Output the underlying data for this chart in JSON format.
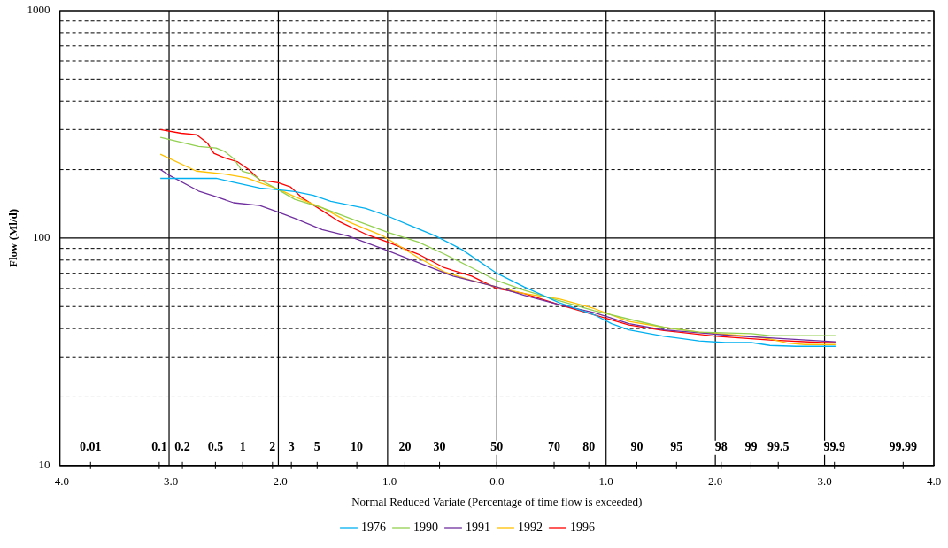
{
  "chart_data": {
    "type": "line",
    "xlabel": "Normal Reduced Variate (Percentage of time flow is exceeded)",
    "ylabel": "Flow (Ml/d)",
    "xlim": [
      -4,
      4
    ],
    "xticks": [
      {
        "value": -4,
        "label": "-4.0"
      },
      {
        "value": -3,
        "label": "-3.0"
      },
      {
        "value": -2,
        "label": "-2.0"
      },
      {
        "value": -1,
        "label": "-1.0"
      },
      {
        "value": 0,
        "label": "0.0"
      },
      {
        "value": 1,
        "label": "1.0"
      },
      {
        "value": 2,
        "label": "2.0"
      },
      {
        "value": 3,
        "label": "3.0"
      },
      {
        "value": 4,
        "label": "4.0"
      }
    ],
    "ylim": [
      10,
      1000
    ],
    "yticks": [
      10,
      {
        "value": 20,
        "label": null
      },
      {
        "value": 30,
        "label": null
      },
      {
        "value": 40,
        "label": null
      },
      {
        "value": 50,
        "label": null
      },
      {
        "value": 60,
        "label": null
      },
      {
        "value": 70,
        "label": null
      },
      {
        "value": 80,
        "label": null
      },
      {
        "value": 90,
        "label": null
      },
      100,
      {
        "value": 200,
        "label": null
      },
      {
        "value": 300,
        "label": null
      },
      {
        "value": 400,
        "label": null
      },
      {
        "value": 500,
        "label": null
      },
      {
        "value": 600,
        "label": null
      },
      {
        "value": 700,
        "label": null
      },
      {
        "value": 800,
        "label": null
      },
      {
        "value": 900,
        "label": null
      },
      1000
    ],
    "log": "y",
    "grid": true,
    "legend": "bottom",
    "marker": "none",
    "line_style": "solid",
    "series": [
      {
        "name": "1976",
        "color": "#00b0f0",
        "x": [
          -3.08,
          -2.57,
          -2.41,
          -2.17,
          -2.0,
          -1.85,
          -1.68,
          -1.52,
          -1.2,
          -1.0,
          -0.8,
          -0.56,
          -0.32,
          0,
          0.25,
          0.57,
          0.89,
          1.05,
          1.21,
          1.53,
          1.85,
          2.09,
          2.33,
          2.5,
          2.74,
          3.1
        ],
        "values": [
          183,
          183,
          176,
          166,
          163,
          160,
          154,
          145,
          135,
          125,
          114,
          102,
          89,
          70,
          61,
          52,
          46,
          42,
          39.5,
          37,
          35.3,
          34.7,
          34.7,
          33.7,
          33.4,
          33.4
        ]
      },
      {
        "name": "1990",
        "color": "#92d050",
        "x": [
          -3.08,
          -2.73,
          -2.57,
          -2.49,
          -2.41,
          -2.33,
          -2.25,
          -2.17,
          -2.0,
          -1.85,
          -1.6,
          -1.36,
          -1.0,
          -0.72,
          -0.48,
          -0.23,
          0,
          0.25,
          0.57,
          0.89,
          1.21,
          1.53,
          1.85,
          2.33,
          2.5,
          3.1
        ],
        "values": [
          277,
          253,
          249,
          240,
          224,
          197,
          192,
          181,
          163,
          148,
          136,
          123,
          106,
          96,
          85,
          74,
          65,
          59,
          53,
          48,
          44,
          40.5,
          38.6,
          38,
          37.2,
          37.2
        ]
      },
      {
        "name": "1991",
        "color": "#7030a0",
        "x": [
          -3.08,
          -3.0,
          -2.73,
          -2.57,
          -2.41,
          -2.17,
          -2.0,
          -1.85,
          -1.6,
          -1.36,
          -1.0,
          -0.72,
          -0.4,
          0,
          0.25,
          0.57,
          0.89,
          1.21,
          1.53,
          1.85,
          2.17,
          2.66,
          3.1
        ],
        "values": [
          200,
          189,
          161,
          152,
          143,
          139,
          130,
          122,
          109,
          102,
          88,
          78,
          68,
          61,
          56,
          51,
          47,
          42,
          39.5,
          38.3,
          37.2,
          36,
          35
        ]
      },
      {
        "name": "1992",
        "color": "#ffc000",
        "x": [
          -3.08,
          -2.75,
          -2.49,
          -2.29,
          -2.17,
          -2.0,
          -1.85,
          -1.6,
          -1.36,
          -1.04,
          -0.72,
          -0.48,
          -0.23,
          0,
          0.25,
          0.57,
          0.89,
          1.21,
          1.53,
          1.85,
          2.33,
          2.5,
          2.66,
          2.82,
          3.1
        ],
        "values": [
          234,
          197,
          191,
          184,
          175,
          164,
          152,
          136,
          118,
          102,
          82,
          71,
          65,
          61,
          57,
          54,
          49,
          43,
          40.5,
          38.6,
          37,
          36,
          34.5,
          34,
          34
        ]
      },
      {
        "name": "1996",
        "color": "#ff0000",
        "x": [
          -3.08,
          -2.89,
          -2.75,
          -2.65,
          -2.59,
          -2.5,
          -2.37,
          -2.27,
          -2.17,
          -2.0,
          -1.89,
          -1.78,
          -1.64,
          -1.44,
          -1.2,
          -1.0,
          -0.72,
          -0.48,
          -0.23,
          0,
          0.25,
          0.57,
          0.89,
          1.21,
          1.53,
          2.01,
          2.5,
          2.98,
          3.1
        ],
        "values": [
          300,
          289,
          285,
          262,
          236,
          226,
          216,
          200,
          180,
          175,
          168,
          150,
          136,
          118,
          104,
          96,
          85,
          74,
          68,
          60,
          57,
          51,
          46,
          41.5,
          39.2,
          37,
          35.6,
          34.7,
          34.7
        ]
      }
    ],
    "annotations": [
      "0.01",
      "0.1",
      "0.2",
      "0.5",
      "1",
      "2",
      "3",
      "5",
      "10",
      "20",
      "30",
      "50",
      "70",
      "80",
      "90",
      "95",
      "98",
      "99",
      "99.5",
      "99.9",
      "99.99"
    ]
  }
}
